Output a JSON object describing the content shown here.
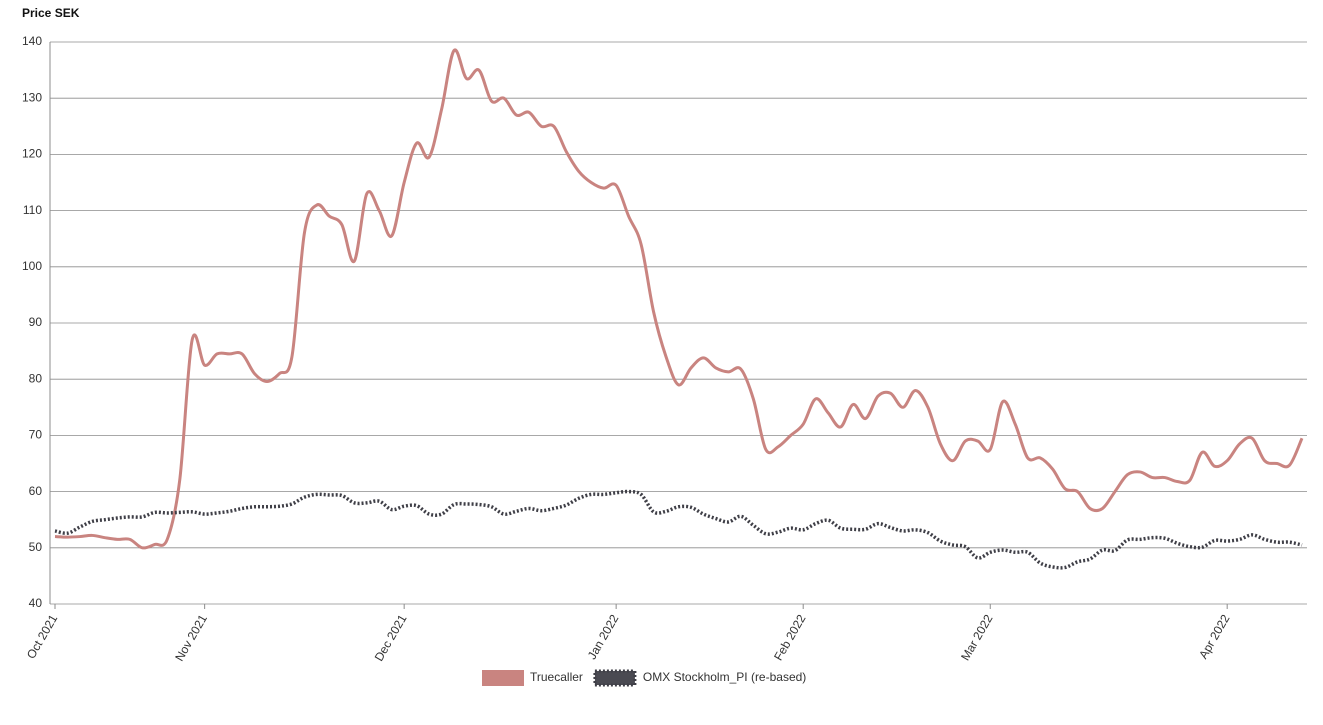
{
  "chart_data": {
    "type": "line",
    "ylabel": "Price SEK",
    "categories": [
      "Oct 2021",
      null,
      null,
      null,
      null,
      null,
      null,
      null,
      null,
      null,
      null,
      null,
      "Nov 2021",
      null,
      null,
      null,
      null,
      null,
      null,
      null,
      null,
      null,
      null,
      null,
      null,
      null,
      null,
      null,
      "Dec 2021",
      null,
      null,
      null,
      null,
      null,
      null,
      null,
      null,
      null,
      null,
      null,
      null,
      null,
      null,
      null,
      null,
      "Jan 2022",
      null,
      null,
      null,
      null,
      null,
      null,
      null,
      null,
      null,
      null,
      null,
      null,
      null,
      null,
      "Feb 2022",
      null,
      null,
      null,
      null,
      null,
      null,
      null,
      null,
      null,
      null,
      null,
      null,
      null,
      null,
      "Mar 2022",
      null,
      null,
      null,
      null,
      null,
      null,
      null,
      null,
      null,
      null,
      null,
      null,
      null,
      null,
      null,
      null,
      null,
      null,
      "Apr 2022",
      null,
      null,
      null,
      null,
      null,
      null
    ],
    "series": [
      {
        "name": "Truecaller",
        "color": "#c98480",
        "style": "solid",
        "values": [
          52,
          51.9,
          52,
          52.2,
          51.8,
          51.5,
          51.5,
          50,
          50.6,
          51.5,
          62,
          87,
          82.5,
          84.5,
          84.5,
          84.5,
          81,
          79.6,
          81,
          84,
          106,
          111,
          109,
          107.5,
          101,
          113,
          110,
          105.5,
          115,
          122,
          119.5,
          128,
          138.5,
          133.5,
          135,
          129.5,
          130,
          127,
          127.5,
          125,
          125,
          120.5,
          117,
          115,
          114,
          114.5,
          109,
          104,
          92,
          84,
          79,
          82,
          83.8,
          82,
          81.3,
          81.8,
          76.5,
          67.5,
          68,
          70,
          72,
          76.5,
          74,
          71.5,
          75.5,
          73,
          77,
          77.5,
          75,
          78,
          75,
          68.5,
          65.5,
          69,
          69,
          67.5,
          76,
          72,
          66,
          66,
          64,
          60.5,
          60,
          57,
          57,
          60,
          63,
          63.5,
          62.5,
          62.5,
          61.8,
          62,
          67,
          64.5,
          65.5,
          68.5,
          69.5,
          65.5,
          65,
          64.7,
          69.5
        ]
      },
      {
        "name": "OMX Stockholm_PI (re-based)",
        "color": "#3f3f47",
        "style": "dotted",
        "values": [
          53,
          52.6,
          53.7,
          54.7,
          55,
          55.3,
          55.5,
          55.5,
          56.3,
          56.2,
          56.3,
          56.4,
          56,
          56.2,
          56.5,
          57,
          57.3,
          57.3,
          57.4,
          57.8,
          59,
          59.5,
          59.4,
          59.3,
          58,
          58,
          58.3,
          56.8,
          57.4,
          57.5,
          56,
          56,
          57.7,
          57.8,
          57.7,
          57.3,
          56,
          56.5,
          57,
          56.6,
          57,
          57.6,
          58.8,
          59.5,
          59.5,
          59.8,
          60,
          59.5,
          56.4,
          56.5,
          57.3,
          57.2,
          56,
          55.2,
          54.6,
          55.6,
          54,
          52.5,
          52.8,
          53.5,
          53.2,
          54.3,
          54.9,
          53.5,
          53.3,
          53.3,
          54.3,
          53.6,
          53,
          53.2,
          52.7,
          51.2,
          50.5,
          50.2,
          48.2,
          49.2,
          49.6,
          49.2,
          49.2,
          47.3,
          46.6,
          46.5,
          47.5,
          48,
          49.6,
          49.5,
          51.4,
          51.5,
          51.8,
          51.7,
          50.8,
          50.2,
          50.1,
          51.3,
          51.2,
          51.5,
          52.3,
          51.5,
          51,
          51,
          50.5
        ]
      }
    ],
    "ylim": [
      40,
      140
    ],
    "yticks": [
      40,
      50,
      60,
      70,
      80,
      90,
      100,
      110,
      120,
      130,
      140
    ],
    "grid": true,
    "legend": "bottom"
  }
}
